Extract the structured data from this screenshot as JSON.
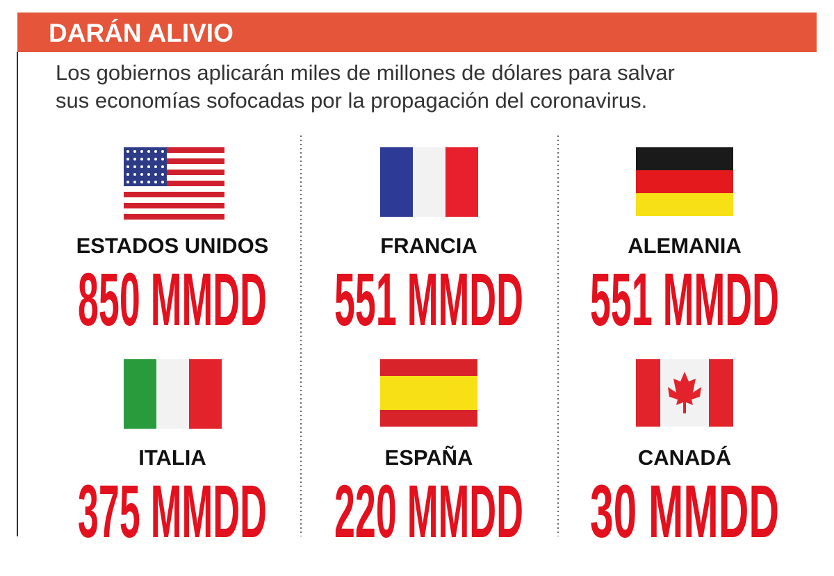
{
  "header": {
    "title": "DARÁN ALIVIO",
    "subtitle": [
      "Los gobiernos aplicarán miles de millones de dólares para salvar",
      "sus economías sofocadas por la propagación del coronavirus."
    ]
  },
  "items": [
    {
      "name": "ESTADOS UNIDOS",
      "amount": "850 MMDD"
    },
    {
      "name": "FRANCIA",
      "amount": "551 MMDD"
    },
    {
      "name": "ALEMANIA",
      "amount": "551 MMDD"
    },
    {
      "name": "ITALIA",
      "amount": "375 MMDD"
    },
    {
      "name": "ESPAÑA",
      "amount": "220 MMDD"
    },
    {
      "name": "CANADÁ",
      "amount": "30 MMDD"
    }
  ]
}
